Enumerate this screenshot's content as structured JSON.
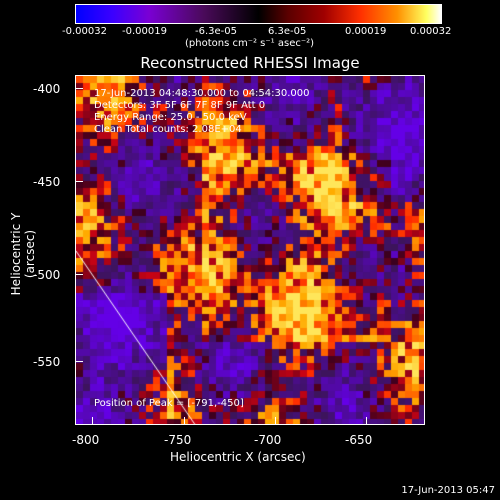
{
  "colorbar": {
    "ticks": [
      "-0.00032",
      "-0.00019",
      "-6.3e-05",
      "6.3e-05",
      "0.00019",
      "0.00032"
    ],
    "unit": "(photons cm⁻² s⁻¹ asec⁻²)"
  },
  "title": "Reconstructed RHESSI Image",
  "info": {
    "time_range": "17-Jun-2013 04:48:30.000 to 04:54:30.000",
    "detectors": "Detectors: 3F 5F 6F 7F 8F 9F Att 0",
    "energy_range": "Energy Range: 25.0 - 50.0 keV",
    "clean": "Clean    Total counts: 2.08E+04",
    "peak": "Position of Peak = [-791,-450]"
  },
  "axes": {
    "xlabel": "Heliocentric X (arcsec)",
    "ylabel": "Heliocentric Y (arcsec)",
    "xticks": [
      "-800",
      "-750",
      "-700",
      "-650"
    ],
    "yticks": [
      "-400",
      "-450",
      "-500",
      "-550"
    ]
  },
  "footer_timestamp": "17-Jun-2013 05:47",
  "colors": {
    "negative": "#3b00ff",
    "zero": "#000000",
    "positive_mid": "#ff3000",
    "positive_high": "#ffff80",
    "limb_line": "#ffffff"
  }
}
